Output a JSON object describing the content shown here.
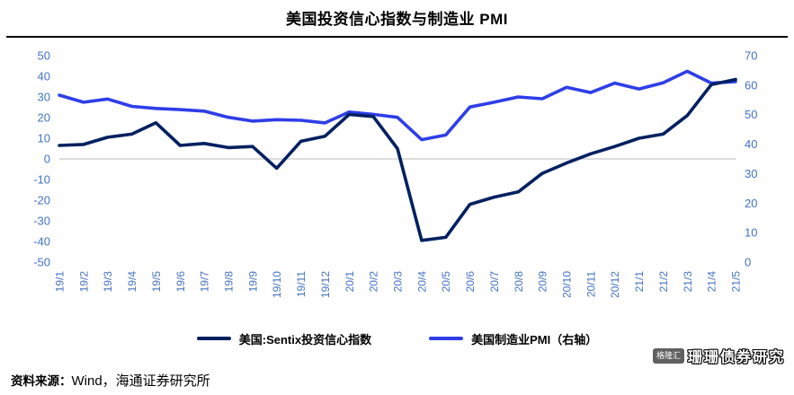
{
  "title": "美国投资信心指数与制造业 PMI",
  "chart_data": {
    "type": "line",
    "categories": [
      "19/1",
      "19/2",
      "19/3",
      "19/4",
      "19/5",
      "19/6",
      "19/7",
      "19/8",
      "19/9",
      "19/10",
      "19/11",
      "19/12",
      "20/1",
      "20/2",
      "20/3",
      "20/4",
      "20/5",
      "20/6",
      "20/7",
      "20/8",
      "20/9",
      "20/10",
      "20/11",
      "20/12",
      "21/1",
      "21/2",
      "21/3",
      "21/4",
      "21/5"
    ],
    "series": [
      {
        "name": "美国:Sentix投资信心指数",
        "axis": "left",
        "color": "#002060",
        "values": [
          6.5,
          7,
          10.5,
          12,
          17.5,
          6.5,
          7.5,
          5.5,
          6,
          -4.5,
          8.5,
          11,
          21.5,
          20.5,
          5,
          -39.5,
          -38,
          -22,
          -18.5,
          -16,
          -7,
          -2,
          2.5,
          6,
          10,
          12,
          21,
          36,
          38.5
        ]
      },
      {
        "name": "美国制造业PMI（右轴）",
        "axis": "right",
        "color": "#2E3EE8",
        "values": [
          56.6,
          54.2,
          55.3,
          52.8,
          52.1,
          51.7,
          51.2,
          49.1,
          47.8,
          48.3,
          48.1,
          47.2,
          50.9,
          50.1,
          49.1,
          41.5,
          43.1,
          52.6,
          54.2,
          56,
          55.4,
          59.3,
          57.5,
          60.7,
          58.7,
          60.8,
          64.7,
          60.7,
          61.2
        ]
      }
    ],
    "left_axis": {
      "min": -50,
      "max": 50,
      "ticks": [
        50,
        40,
        30,
        20,
        10,
        0,
        -10,
        -20,
        -30,
        -40,
        -50
      ]
    },
    "right_axis": {
      "min": 0,
      "max": 70,
      "ticks": [
        70,
        60,
        50,
        40,
        30,
        20,
        10,
        0
      ]
    },
    "legend_position": "bottom",
    "grid": "zero-line-only"
  },
  "footer": {
    "source_label": "资料来源：",
    "source_text": "Wind，海通证券研究所"
  },
  "watermark": {
    "logo_text": "格隆汇",
    "text": "珊珊债券研究"
  },
  "colors": {
    "axis_labels": "#4472C4",
    "zero_line": "#C6C6C6",
    "title_rule": "#000000"
  }
}
